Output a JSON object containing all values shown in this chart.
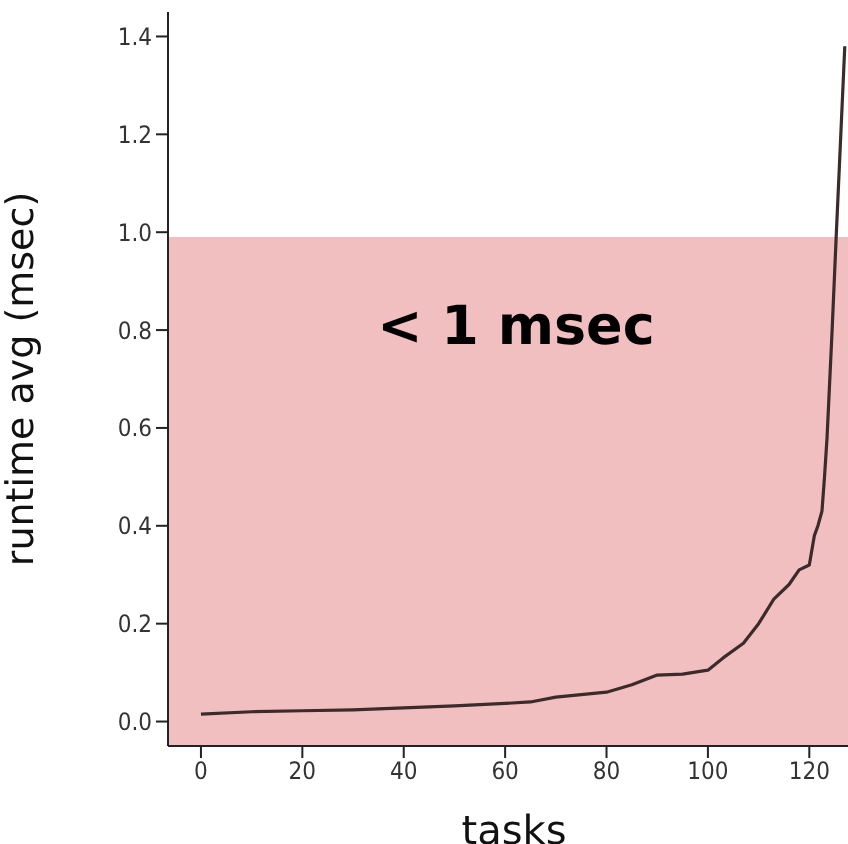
{
  "chart_data": {
    "type": "line",
    "xlabel": "tasks",
    "ylabel": "runtime avg (msec)",
    "x": [
      0,
      10,
      20,
      30,
      40,
      50,
      60,
      65,
      70,
      75,
      80,
      85,
      90,
      95,
      100,
      103,
      107,
      110,
      113,
      116,
      118,
      120,
      121,
      121.7,
      122.5,
      123,
      123.5,
      124.5,
      125.3,
      126,
      127
    ],
    "series": [
      {
        "color": "#3b2b2b",
        "values": [
          0.015,
          0.02,
          0.022,
          0.024,
          0.028,
          0.032,
          0.037,
          0.04,
          0.05,
          0.055,
          0.06,
          0.075,
          0.095,
          0.097,
          0.105,
          0.13,
          0.16,
          0.2,
          0.25,
          0.28,
          0.31,
          0.32,
          0.38,
          0.4,
          0.43,
          0.5,
          0.58,
          0.8,
          0.99,
          1.15,
          1.38
        ]
      }
    ],
    "xlim": [
      -6.5,
      130
    ],
    "xticks": [
      0,
      20,
      40,
      60,
      80,
      100,
      120
    ],
    "ylim": [
      -0.05,
      1.45
    ],
    "yticks": [
      {
        "value": 0,
        "label": "0.0"
      },
      {
        "value": 0.2,
        "label": "0.2"
      },
      {
        "value": 0.4,
        "label": "0.4"
      },
      {
        "value": 0.6,
        "label": "0.6"
      },
      {
        "value": 0.8,
        "label": "0.8"
      },
      {
        "value": 1,
        "label": "1.0"
      },
      {
        "value": 1.2,
        "label": "1.2"
      },
      {
        "value": 1.4,
        "label": "1.4"
      }
    ],
    "bands": [
      {
        "axis": "y",
        "from": -0.05,
        "to": 0.99,
        "color": "#f2bfc1"
      }
    ],
    "annotations": [
      "< 1 msec"
    ],
    "grid": false,
    "legend": false,
    "marker": "none",
    "line_style": "solid"
  }
}
